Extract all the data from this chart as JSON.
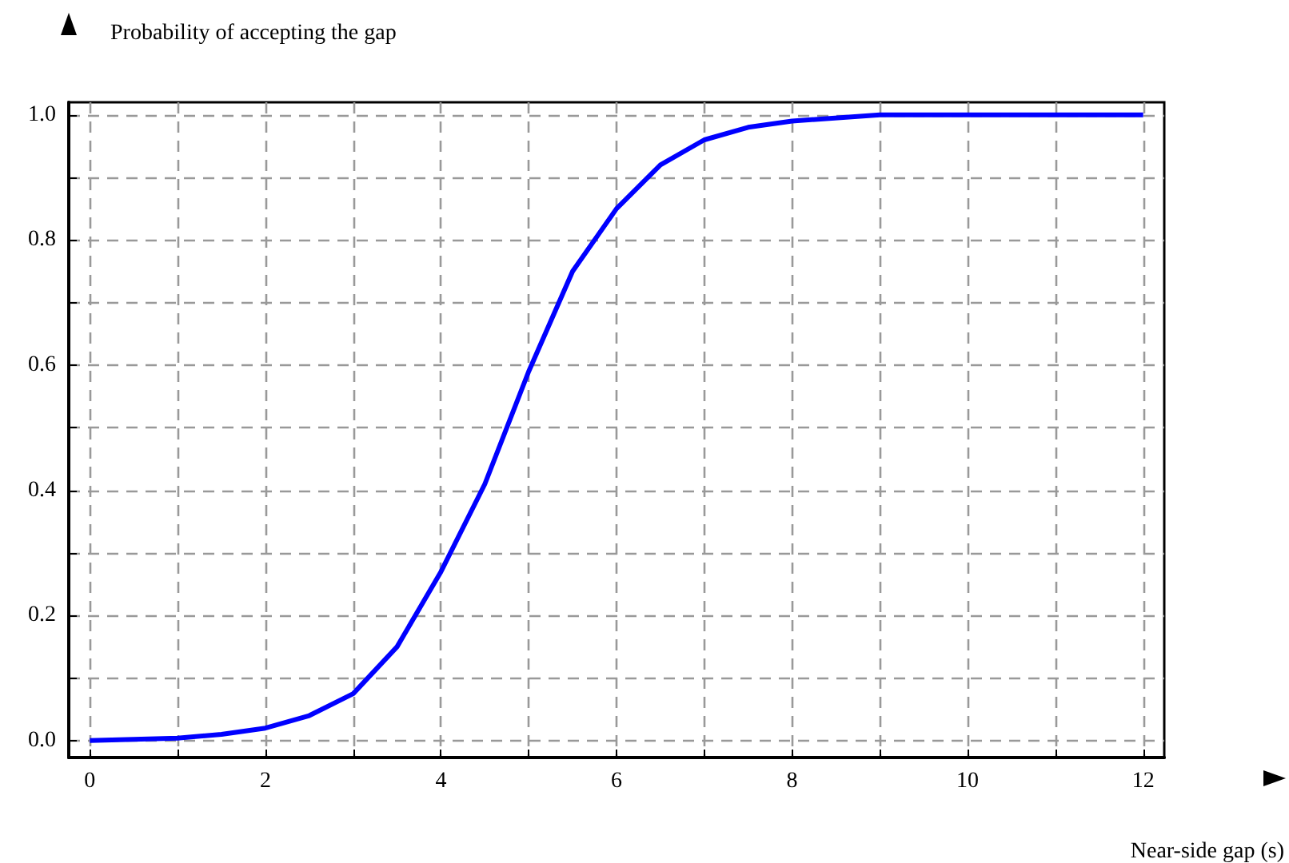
{
  "chart_data": {
    "type": "line",
    "ylabel": "Probability of accepting the gap",
    "xlabel": "Near-side gap (s)",
    "x": [
      0,
      0.5,
      1,
      1.5,
      2,
      2.5,
      3,
      3.5,
      4,
      4.5,
      5,
      5.5,
      6,
      6.5,
      7,
      7.5,
      8,
      9,
      10,
      11,
      12
    ],
    "series": [
      {
        "color": "#0000ff",
        "values": [
          0,
          0.002,
          0.004,
          0.01,
          0.02,
          0.04,
          0.075,
          0.15,
          0.27,
          0.41,
          0.59,
          0.75,
          0.85,
          0.92,
          0.96,
          0.98,
          0.99,
          1.0,
          1.0,
          1.0,
          1.0
        ]
      }
    ],
    "xlim": [
      -0.24,
      12.24
    ],
    "ylim": [
      -0.027,
      1.02
    ],
    "xticks": [
      0,
      {
        "value": 1,
        "label": null
      },
      2,
      {
        "value": 3,
        "label": null
      },
      4,
      {
        "value": 5,
        "label": null
      },
      6,
      {
        "value": 7,
        "label": null
      },
      8,
      {
        "value": 9,
        "label": null
      },
      10,
      {
        "value": 11,
        "label": null
      },
      12
    ],
    "yticks": [
      {
        "value": 0,
        "label": "0.0"
      },
      {
        "value": 0.1,
        "label": null
      },
      {
        "value": 0.2,
        "label": "0.2"
      },
      {
        "value": 0.3,
        "label": null
      },
      {
        "value": 0.4,
        "label": "0.4"
      },
      {
        "value": 0.5,
        "label": null
      },
      {
        "value": 0.6,
        "label": "0.6"
      },
      {
        "value": 0.7,
        "label": null
      },
      {
        "value": 0.8,
        "label": "0.8"
      },
      {
        "value": 0.9,
        "label": null
      },
      {
        "value": 1,
        "label": "1.0"
      }
    ],
    "grid": true,
    "marker": "none",
    "line_style": "solid"
  }
}
